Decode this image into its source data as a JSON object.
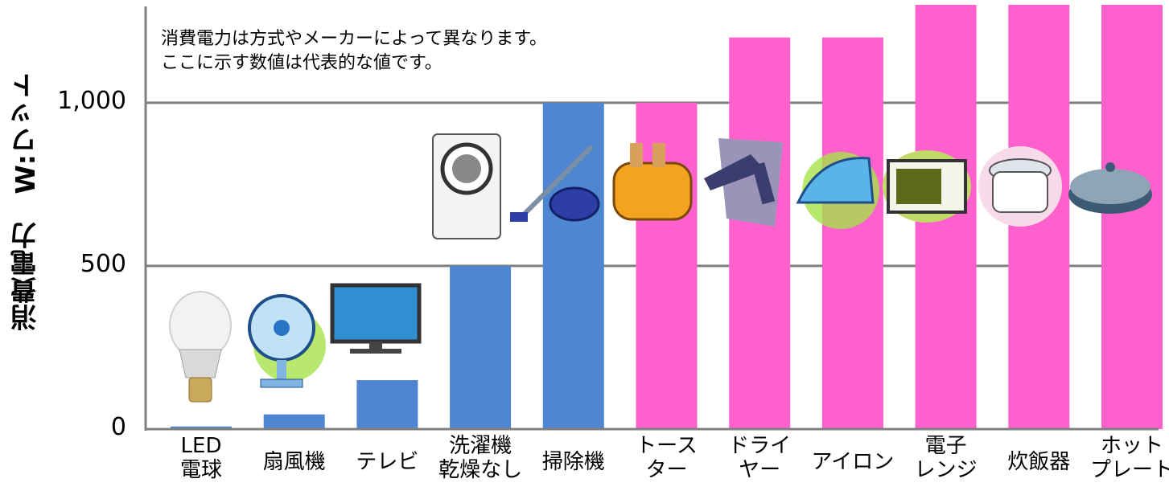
{
  "note": {
    "line1": "消費電力は方式やメーカーによって異なります。",
    "line2": "ここに示す数値は代表的な値です。"
  },
  "chart_data": {
    "type": "bar",
    "ylabel": "消費電力　W:ワット",
    "ylim": [
      0,
      1300
    ],
    "yticks": [
      "0",
      "500",
      "1,000"
    ],
    "ytick_values": [
      0,
      500,
      1000
    ],
    "grid": true,
    "categories": [
      {
        "lines": [
          "LED",
          "電球"
        ],
        "icon": "led-bulb-icon"
      },
      {
        "lines": [
          "扇風機"
        ],
        "icon": "electric-fan-icon"
      },
      {
        "lines": [
          "テレビ"
        ],
        "icon": "television-icon"
      },
      {
        "lines": [
          "洗濯機",
          "乾燥なし"
        ],
        "icon": "washing-machine-icon"
      },
      {
        "lines": [
          "掃除機"
        ],
        "icon": "vacuum-cleaner-icon"
      },
      {
        "lines": [
          "トース",
          "ター"
        ],
        "icon": "toaster-icon"
      },
      {
        "lines": [
          "ドライ",
          "ヤー"
        ],
        "icon": "hair-dryer-icon"
      },
      {
        "lines": [
          "アイロン"
        ],
        "icon": "iron-icon"
      },
      {
        "lines": [
          "電子",
          "レンジ"
        ],
        "icon": "microwave-icon"
      },
      {
        "lines": [
          "炊飯器"
        ],
        "icon": "rice-cooker-icon"
      },
      {
        "lines": [
          "ホット",
          "プレート"
        ],
        "icon": "hot-plate-icon"
      }
    ],
    "values": [
      8,
      45,
      150,
      500,
      1000,
      1000,
      1200,
      1200,
      1300,
      1300,
      1300
    ],
    "colors": [
      "#4e86d2",
      "#4e86d2",
      "#4e86d2",
      "#4e86d2",
      "#4e86d2",
      "#fe60ce",
      "#fe60ce",
      "#fe60ce",
      "#fe60ce",
      "#fe60ce",
      "#fe60ce"
    ]
  }
}
